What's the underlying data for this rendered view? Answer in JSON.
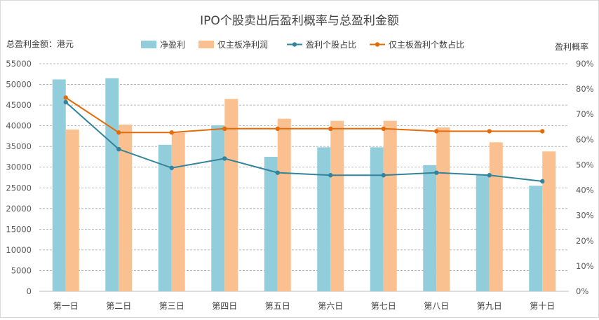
{
  "chart_data": {
    "type": "bar",
    "title": "IPO个股卖出后盈利概率与总盈利金额",
    "ylabel_left": "总盈利金额：港元",
    "ylabel_right": "盈利概率",
    "categories": [
      "第一日",
      "第二日",
      "第三日",
      "第四日",
      "第五日",
      "第六日",
      "第七日",
      "第八日",
      "第九日",
      "第十日"
    ],
    "ylim_left": [
      0,
      55000
    ],
    "yticks_left": [
      "0",
      "5000",
      "10000",
      "15000",
      "20000",
      "25000",
      "30000",
      "35000",
      "40000",
      "45000",
      "50000",
      "55000"
    ],
    "ylim_right": [
      0,
      90
    ],
    "yticks_right": [
      "0%",
      "10%",
      "20%",
      "30%",
      "40%",
      "50%",
      "60%",
      "70%",
      "80%",
      "90%"
    ],
    "grid": true,
    "legend_position": "top",
    "series": [
      {
        "name": "净盈利",
        "kind": "bar",
        "axis": "left",
        "color": "#92cddc",
        "values": [
          51200,
          51500,
          35400,
          40100,
          32500,
          34800,
          34800,
          30500,
          28000,
          25500
        ]
      },
      {
        "name": "仅主板净利润",
        "kind": "bar",
        "axis": "left",
        "color": "#fac090",
        "values": [
          39100,
          40300,
          38300,
          46500,
          41700,
          41200,
          41200,
          39600,
          36000,
          33800
        ]
      },
      {
        "name": "盈利个股占比",
        "kind": "line",
        "axis": "right",
        "color": "#31849b",
        "values": [
          74.8,
          56.2,
          48.8,
          52.5,
          46.9,
          45.9,
          45.9,
          46.9,
          45.9,
          43.5
        ]
      },
      {
        "name": "仅主板盈利个数占比",
        "kind": "line",
        "axis": "right",
        "color": "#e36c09",
        "values": [
          76.6,
          62.8,
          62.8,
          64.3,
          64.3,
          64.3,
          64.3,
          63.3,
          63.3,
          63.3
        ]
      }
    ]
  }
}
